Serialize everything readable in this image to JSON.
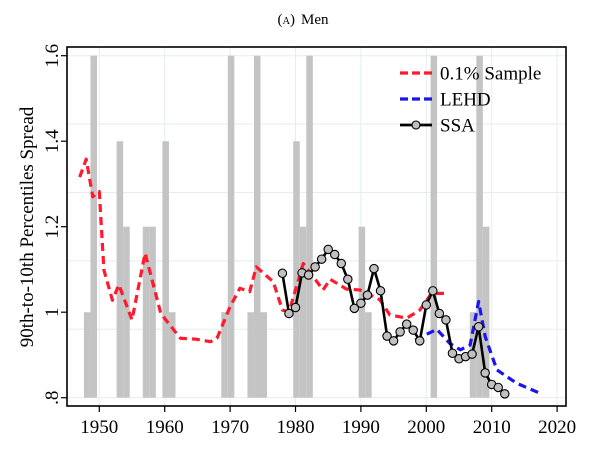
{
  "chart_data": {
    "type": "line",
    "title": "(A) Men",
    "title_prefix": "(",
    "title_letter": "A",
    "title_suffix": ")",
    "title_word": "Men",
    "xlabel": "",
    "ylabel": "90th-to-10th Percentiles Spread",
    "xlim": [
      1945.2,
      2021.3
    ],
    "ylim": [
      0.8,
      1.6
    ],
    "xticks": [
      1950,
      1960,
      1970,
      1980,
      1990,
      2000,
      2010,
      2020
    ],
    "xtick_labels": [
      "1950",
      "1960",
      "1970",
      "1980",
      "1990",
      "2000",
      "2010",
      "2020"
    ],
    "yticks": [
      0.8,
      1.0,
      1.2,
      1.4,
      1.6
    ],
    "ytick_labels": [
      ".8",
      "1",
      "1.2",
      "1.4",
      "1.6"
    ],
    "grid": true,
    "grid_y_values": [
      0.96,
      1.12,
      1.28,
      1.44,
      1.6
    ],
    "legend_position": "top-right",
    "recession_bars": {
      "color": "#c4c4c4",
      "baseline": 0.8,
      "years": [
        1948,
        1949,
        1953,
        1954,
        1957,
        1958,
        1960,
        1961,
        1969,
        1970,
        1973,
        1974,
        1975,
        1980,
        1981,
        1982,
        1990,
        1991,
        2001,
        2007,
        2008,
        2009
      ],
      "values": [
        1.0,
        1.6,
        1.4,
        1.2,
        1.2,
        1.2,
        1.4,
        1.0,
        1.0,
        1.6,
        1.0,
        1.6,
        1.0,
        1.4,
        1.2,
        1.6,
        1.2,
        1.0,
        1.6,
        1.0,
        1.6,
        1.2
      ]
    },
    "series": [
      {
        "name": "0.1% Sample",
        "color": "#ff1a2e",
        "style": "dashed",
        "x": [
          1947.0,
          1948.0,
          1949.0,
          1950.0,
          1950.7,
          1952.0,
          1953.0,
          1955.0,
          1957.0,
          1959.4,
          1962.4,
          1964.7,
          1967.0,
          1968.0,
          1970.0,
          1971.5,
          1973.0,
          1974.0,
          1976.6,
          1978.0,
          1979.0,
          1981.2,
          1982.7,
          1984.2,
          1985.3,
          1987.8,
          1989.9,
          1992.9,
          1994.4,
          1997.0,
          1999.0,
          2000.8,
          2002.9
        ],
        "values": [
          1.316,
          1.358,
          1.27,
          1.282,
          1.099,
          1.028,
          1.064,
          0.982,
          1.138,
          0.997,
          0.939,
          0.937,
          0.931,
          0.939,
          1.013,
          1.056,
          1.048,
          1.106,
          1.071,
          1.005,
          1.001,
          1.114,
          1.083,
          1.052,
          1.077,
          1.054,
          1.052,
          1.029,
          0.994,
          0.986,
          1.005,
          1.044,
          1.044
        ]
      },
      {
        "name": "LEHD",
        "color": "#1a14f0",
        "style": "dashed",
        "x": [
          1998.3,
          2001.6,
          2003.6,
          2005.2,
          2006.7,
          2008.0,
          2009.0,
          2010.8,
          2013.8,
          2017.6
        ],
        "values": [
          0.935,
          0.96,
          0.927,
          0.912,
          0.923,
          1.025,
          0.943,
          0.865,
          0.834,
          0.809
        ]
      },
      {
        "name": "SSA",
        "color": "#000000",
        "marker_color": "#c0c0c0",
        "style": "solid-with-markers",
        "x": [
          1978,
          1979,
          1980,
          1981,
          1982,
          1983,
          1984,
          1985,
          1986,
          1987,
          1988,
          1989,
          1990,
          1991,
          1992,
          1993,
          1994,
          1995,
          1996,
          1997,
          1998,
          1999,
          2000,
          2001,
          2002,
          2003,
          2004,
          2005,
          2006,
          2007,
          2008,
          2009,
          2010,
          2011,
          2012
        ],
        "values": [
          1.091,
          0.997,
          1.011,
          1.092,
          1.087,
          1.106,
          1.124,
          1.147,
          1.135,
          1.114,
          1.077,
          1.009,
          1.021,
          1.04,
          1.102,
          1.05,
          0.944,
          0.933,
          0.954,
          0.972,
          0.958,
          0.933,
          1.017,
          1.05,
          0.997,
          0.982,
          0.904,
          0.891,
          0.896,
          0.902,
          0.966,
          0.858,
          0.831,
          0.824,
          0.809
        ]
      }
    ],
    "legend": [
      {
        "label": "0.1% Sample",
        "color": "#ff1a2e",
        "style": "dashed"
      },
      {
        "label": "LEHD",
        "color": "#1a14f0",
        "style": "dashed"
      },
      {
        "label": "SSA",
        "color": "#000000",
        "style": "solid-with-markers"
      }
    ]
  }
}
